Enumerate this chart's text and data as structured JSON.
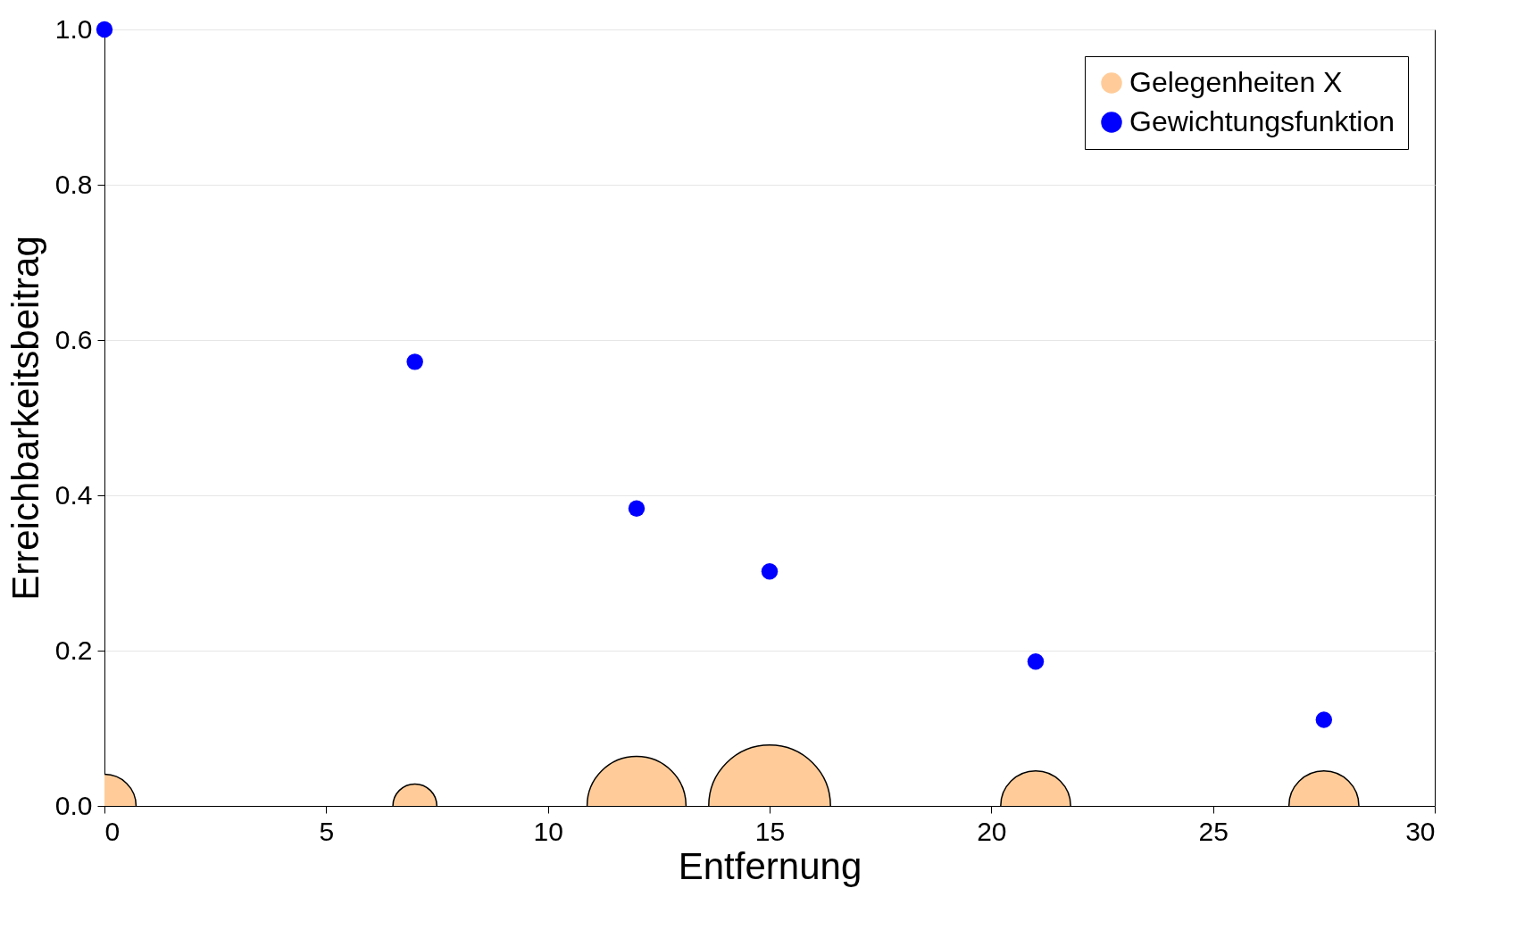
{
  "chart_data": {
    "type": "bubble",
    "xlabel": "Entfernung",
    "ylabel": "Erreichbarkeitsbeitrag",
    "series": [
      {
        "name": "Gelegenheiten X",
        "color": "#ffcc99",
        "x": [
          0,
          7,
          12,
          15,
          21,
          27.5
        ],
        "values": [
          0,
          0,
          0,
          0,
          0,
          0
        ],
        "sizes": [
          0.27,
          0.13,
          0.66,
          1,
          0.33,
          0.33
        ]
      },
      {
        "name": "Gewichtungsfunktion",
        "type": "scatter",
        "color": "#0000ff",
        "x": [
          0,
          7,
          12,
          15,
          21,
          27.5
        ],
        "values": [
          1.0,
          0.572,
          0.383,
          0.302,
          0.186,
          0.111
        ]
      }
    ],
    "xlim": [
      0,
      30
    ],
    "xticks": [
      0,
      5,
      10,
      15,
      20,
      25,
      30
    ],
    "ylim": [
      0,
      1
    ],
    "yticks": [
      {
        "value": 0,
        "label": "0.0"
      },
      0.2,
      0.4,
      0.6,
      0.8,
      {
        "value": 1,
        "label": "1.0"
      }
    ],
    "grid": "y",
    "legend": "top right",
    "marker": "circle"
  }
}
